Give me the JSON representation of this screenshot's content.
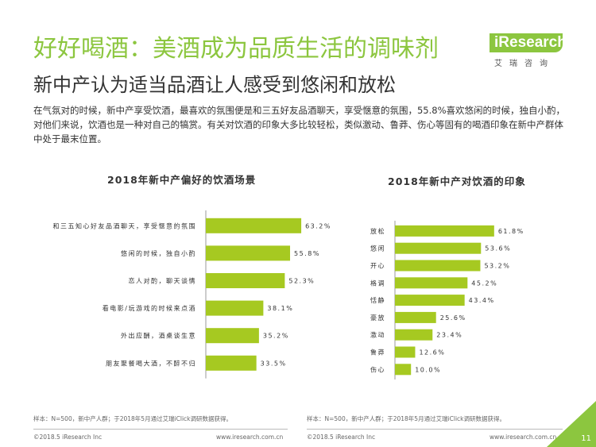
{
  "header": {
    "title": "好好喝酒：美酒成为品质生活的调味剂",
    "subtitle": "新中产认为适当品酒让人感受到悠闲和放松",
    "logo_text": "iResearch",
    "logo_sub": "艾瑞咨询"
  },
  "description": "在气氛对的时候，新中产享受饮酒，最喜欢的氛围便是和三五好友品酒聊天，享受惬意的氛围，55.8%喜欢悠闲的时候，独自小酌，对他们来说，饮酒也是一种对自己的犒赏。有关对饮酒的印象大多比较轻松，类似激动、鲁莽、伤心等固有的喝酒印象在新中产群体中处于最末位置。",
  "colors": {
    "accent": "#8cc63f",
    "bar": "#a6c921"
  },
  "chart_data": [
    {
      "type": "bar",
      "orientation": "horizontal",
      "title": "2018年新中产偏好的饮酒场景",
      "categories": [
        "和三五知心好友品酒聊天，享受惬意的氛围",
        "悠闲的时候，独自小酌",
        "恋人对酌，聊天谈情",
        "看电影/玩游戏的时候来点酒",
        "外出应酬，酒桌谈生意",
        "朋友聚餐喝大酒，不醉不归"
      ],
      "values": [
        63.2,
        55.8,
        52.3,
        38.1,
        35.2,
        33.5
      ],
      "value_labels": [
        "63.2%",
        "55.8%",
        "52.3%",
        "38.1%",
        "35.2%",
        "33.5%"
      ],
      "xlim": [
        0,
        100
      ]
    },
    {
      "type": "bar",
      "orientation": "horizontal",
      "title": "2018年新中产对饮酒的印象",
      "categories": [
        "放松",
        "悠闲",
        "开心",
        "格调",
        "恬静",
        "豪放",
        "激动",
        "鲁莽",
        "伤心"
      ],
      "values": [
        61.8,
        53.6,
        53.2,
        45.2,
        43.4,
        25.6,
        23.4,
        12.6,
        10.0
      ],
      "value_labels": [
        "61.8%",
        "53.6%",
        "53.2%",
        "45.2%",
        "43.4%",
        "25.6%",
        "23.4%",
        "12.6%",
        "10.0%"
      ],
      "xlim": [
        0,
        100
      ]
    }
  ],
  "notes": {
    "left": "样本：N=500，新中产人群；于2018年5月通过艾瑞iClick调研数据获得。",
    "right": "样本：N=500，新中产人群；于2018年5月通过艾瑞iClick调研数据获得。"
  },
  "footer": {
    "copyright_left": "©2018.5 iResearch Inc",
    "url_left": "www.iresearch.com.cn",
    "copyright_right": "©2018.5 iResearch Inc",
    "url_right": "www.iresearch.com.cn",
    "page_number": "11"
  }
}
